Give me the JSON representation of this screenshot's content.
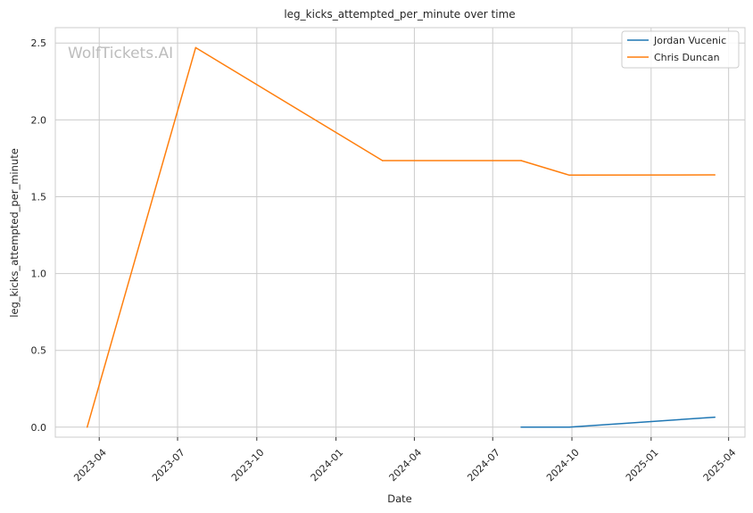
{
  "chart_data": {
    "type": "line",
    "title": "leg_kicks_attempted_per_minute over time",
    "xlabel": "Date",
    "ylabel": "leg_kicks_attempted_per_minute",
    "watermark": "WolfTickets.AI",
    "x_ticks": [
      "2023-04",
      "2023-07",
      "2023-10",
      "2024-01",
      "2024-04",
      "2024-07",
      "2024-10",
      "2025-01",
      "2025-04"
    ],
    "y_ticks": [
      "0.0",
      "0.5",
      "1.0",
      "1.5",
      "2.0",
      "2.5"
    ],
    "xlim": [
      "2023-02-09",
      "2025-04-20"
    ],
    "ylim": [
      -0.065,
      2.6
    ],
    "grid": true,
    "legend": "top-right",
    "series": [
      {
        "name": "Jordan Vucenic",
        "color": "#1f77b4",
        "points": [
          {
            "x": "2024-08-03",
            "y": 0.0
          },
          {
            "x": "2024-09-28",
            "y": 0.0
          },
          {
            "x": "2025-03-16",
            "y": 0.065
          }
        ]
      },
      {
        "name": "Chris Duncan",
        "color": "#ff7f0e",
        "points": [
          {
            "x": "2023-03-18",
            "y": 0.0
          },
          {
            "x": "2023-07-22",
            "y": 2.47
          },
          {
            "x": "2024-02-24",
            "y": 1.735
          },
          {
            "x": "2024-08-03",
            "y": 1.735
          },
          {
            "x": "2024-09-28",
            "y": 1.64
          },
          {
            "x": "2025-03-16",
            "y": 1.642
          }
        ]
      }
    ]
  }
}
